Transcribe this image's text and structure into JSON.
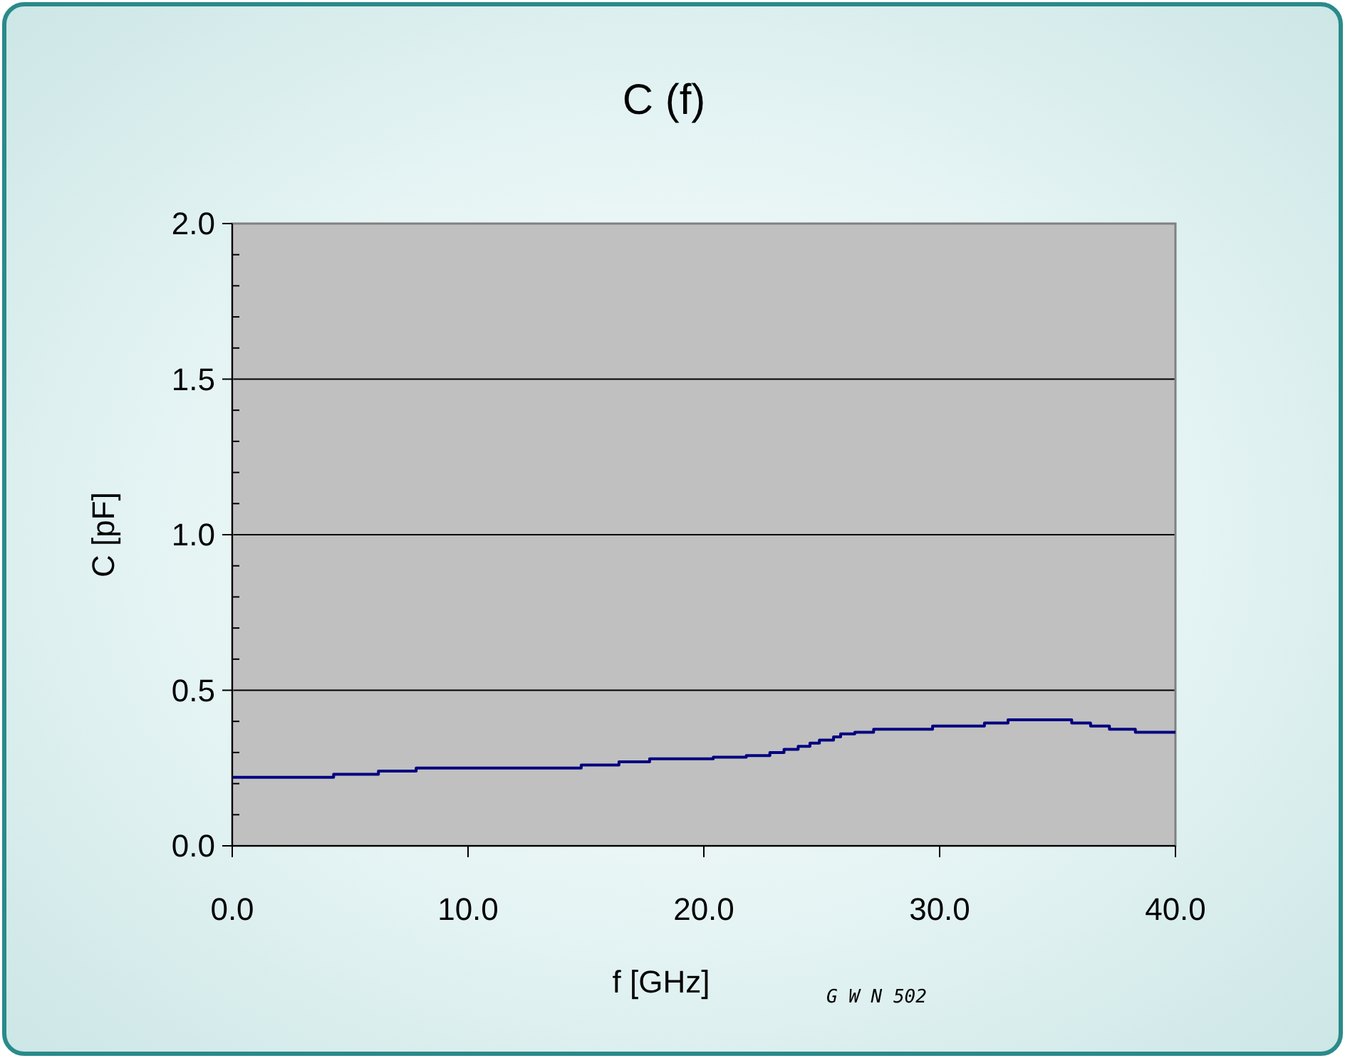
{
  "chart_data": {
    "type": "step",
    "title": "C (f)",
    "xlabel": "f [GHz]",
    "ylabel": "C [pF]",
    "x": [
      0,
      4.3,
      6.2,
      7.8,
      14.8,
      16.4,
      17.7,
      20.4,
      21.8,
      22.8,
      23.4,
      24.0,
      24.5,
      24.9,
      25.5,
      25.8,
      26.4,
      27.2,
      29.7,
      31.9,
      32.9,
      35.6,
      36.4,
      37.2,
      38.3,
      40
    ],
    "series": [
      {
        "color": "#000080",
        "values": [
          0.22,
          0.23,
          0.24,
          0.25,
          0.26,
          0.27,
          0.28,
          0.285,
          0.29,
          0.3,
          0.31,
          0.32,
          0.33,
          0.34,
          0.35,
          0.36,
          0.365,
          0.375,
          0.385,
          0.395,
          0.405,
          0.395,
          0.385,
          0.375,
          0.365,
          0.365
        ]
      }
    ],
    "xlim": [
      0,
      40
    ],
    "xticks": [
      {
        "value": 0,
        "label": "0.0"
      },
      {
        "value": 10,
        "label": "10.0"
      },
      {
        "value": 20,
        "label": "20.0"
      },
      {
        "value": 30,
        "label": "30.0"
      },
      {
        "value": 40,
        "label": "40.0"
      }
    ],
    "ylim": [
      0,
      2
    ],
    "yticks": [
      {
        "value": 0,
        "label": "0.0"
      },
      {
        "value": 0.1,
        "label": null
      },
      {
        "value": 0.2,
        "label": null
      },
      {
        "value": 0.3,
        "label": null
      },
      {
        "value": 0.4,
        "label": null
      },
      {
        "value": 0.5,
        "label": "0.5"
      },
      {
        "value": 0.6,
        "label": null
      },
      {
        "value": 0.7,
        "label": null
      },
      {
        "value": 0.8,
        "label": null
      },
      {
        "value": 0.9,
        "label": null
      },
      {
        "value": 1,
        "label": "1.0"
      },
      {
        "value": 1.1,
        "label": null
      },
      {
        "value": 1.2,
        "label": null
      },
      {
        "value": 1.3,
        "label": null
      },
      {
        "value": 1.4,
        "label": null
      },
      {
        "value": 1.5,
        "label": "1.5"
      },
      {
        "value": 1.6,
        "label": null
      },
      {
        "value": 1.7,
        "label": null
      },
      {
        "value": 1.8,
        "label": null
      },
      {
        "value": 1.9,
        "label": null
      },
      {
        "value": 2,
        "label": "2.0"
      }
    ],
    "grid": "y",
    "marker": "none",
    "line_style": "solid",
    "annotations": [
      "G W N 502"
    ]
  }
}
